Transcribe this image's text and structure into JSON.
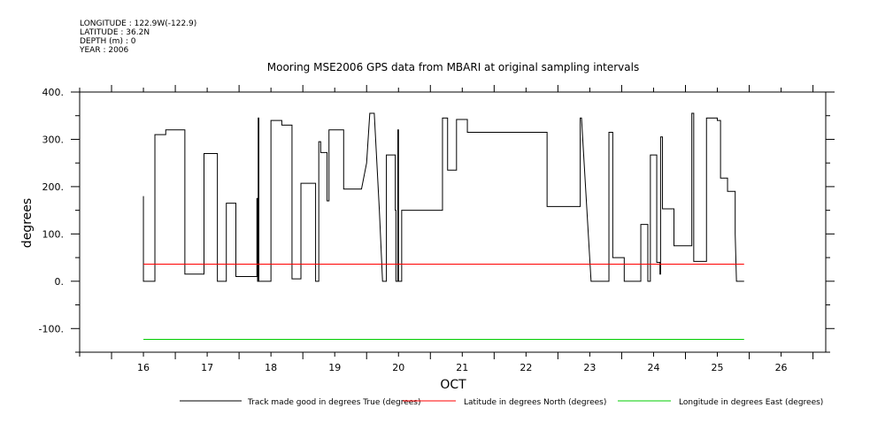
{
  "header": {
    "longitude": "LONGITUDE : 122.9W(-122.9)",
    "latitude": "LATITUDE : 36.2N",
    "depth": "DEPTH (m) : 0",
    "year": "YEAR : 2006"
  },
  "chart_data": {
    "type": "line",
    "title": "Mooring MSE2006 GPS data from MBARI at original sampling intervals",
    "xlabel": "OCT",
    "ylabel": "degrees",
    "xlim": [
      15.5,
      27.2
    ],
    "ylim": [
      -150,
      400
    ],
    "x_ticks": [
      16,
      17,
      18,
      19,
      20,
      21,
      22,
      23,
      24,
      25,
      26
    ],
    "x_tick_labels": [
      "16",
      "17",
      "18",
      "19",
      "20",
      "21",
      "22",
      "23",
      "24",
      "25",
      "26"
    ],
    "y_ticks": [
      -100,
      0,
      100,
      200,
      300,
      400
    ],
    "y_tick_labels": [
      "-100.",
      "0.",
      "100.",
      "200.",
      "300.",
      "400."
    ],
    "grid": false,
    "legend_position": "bottom",
    "series": [
      {
        "name": "Track made good in degrees True (degrees)",
        "color": "#000000",
        "points": [
          [
            16.5,
            180
          ],
          [
            16.5,
            0
          ],
          [
            16.68,
            0
          ],
          [
            16.68,
            310
          ],
          [
            16.85,
            310
          ],
          [
            16.85,
            320
          ],
          [
            17.15,
            320
          ],
          [
            17.15,
            15
          ],
          [
            17.45,
            15
          ],
          [
            17.45,
            270
          ],
          [
            17.66,
            270
          ],
          [
            17.66,
            0
          ],
          [
            17.8,
            0
          ],
          [
            17.8,
            165
          ],
          [
            17.95,
            165
          ],
          [
            17.95,
            10
          ],
          [
            18.28,
            10
          ],
          [
            18.28,
            175
          ],
          [
            18.29,
            175
          ],
          [
            18.29,
            0
          ],
          [
            18.3,
            0
          ],
          [
            18.3,
            345
          ],
          [
            18.31,
            345
          ],
          [
            18.31,
            0
          ],
          [
            18.5,
            0
          ],
          [
            18.5,
            340
          ],
          [
            18.67,
            340
          ],
          [
            18.67,
            330
          ],
          [
            18.83,
            330
          ],
          [
            18.83,
            5
          ],
          [
            18.97,
            5
          ],
          [
            18.97,
            207
          ],
          [
            19.2,
            207
          ],
          [
            19.2,
            0
          ],
          [
            19.25,
            0
          ],
          [
            19.25,
            295
          ],
          [
            19.28,
            295
          ],
          [
            19.28,
            272
          ],
          [
            19.38,
            272
          ],
          [
            19.38,
            170
          ],
          [
            19.41,
            170
          ],
          [
            19.41,
            320
          ],
          [
            19.64,
            320
          ],
          [
            19.64,
            195
          ],
          [
            19.92,
            195
          ],
          [
            20.0,
            250
          ],
          [
            20.05,
            355
          ],
          [
            20.12,
            355
          ],
          [
            20.2,
            150
          ],
          [
            20.25,
            0
          ],
          [
            20.31,
            0
          ],
          [
            20.31,
            267
          ],
          [
            20.45,
            267
          ],
          [
            20.45,
            150
          ],
          [
            20.46,
            150
          ],
          [
            20.46,
            0
          ],
          [
            20.49,
            0
          ],
          [
            20.49,
            320
          ],
          [
            20.5,
            320
          ],
          [
            20.5,
            0
          ],
          [
            20.55,
            0
          ],
          [
            20.55,
            150
          ],
          [
            21.19,
            150
          ],
          [
            21.19,
            345
          ],
          [
            21.27,
            345
          ],
          [
            21.27,
            235
          ],
          [
            21.41,
            235
          ],
          [
            21.41,
            342
          ],
          [
            21.58,
            342
          ],
          [
            21.58,
            315
          ],
          [
            22.83,
            315
          ],
          [
            22.83,
            158
          ],
          [
            23.35,
            158
          ],
          [
            23.35,
            345
          ],
          [
            23.37,
            345
          ],
          [
            23.52,
            0
          ],
          [
            23.8,
            0
          ],
          [
            23.8,
            315
          ],
          [
            23.86,
            315
          ],
          [
            23.86,
            50
          ],
          [
            24.04,
            50
          ],
          [
            24.04,
            0
          ],
          [
            24.3,
            0
          ],
          [
            24.3,
            120
          ],
          [
            24.41,
            120
          ],
          [
            24.41,
            0
          ],
          [
            24.45,
            0
          ],
          [
            24.45,
            267
          ],
          [
            24.55,
            267
          ],
          [
            24.55,
            40
          ],
          [
            24.6,
            40
          ],
          [
            24.6,
            15
          ],
          [
            24.61,
            15
          ],
          [
            24.61,
            305
          ],
          [
            24.64,
            305
          ],
          [
            24.64,
            153
          ],
          [
            24.82,
            153
          ],
          [
            24.82,
            75
          ],
          [
            25.1,
            75
          ],
          [
            25.1,
            355
          ],
          [
            25.13,
            355
          ],
          [
            25.13,
            42
          ],
          [
            25.33,
            42
          ],
          [
            25.33,
            345
          ],
          [
            25.5,
            345
          ],
          [
            25.5,
            340
          ],
          [
            25.55,
            340
          ],
          [
            25.55,
            218
          ],
          [
            25.66,
            218
          ],
          [
            25.66,
            190
          ],
          [
            25.78,
            190
          ],
          [
            25.78,
            100
          ],
          [
            25.8,
            0
          ],
          [
            25.92,
            0
          ]
        ]
      },
      {
        "name": "Latitude in degrees North (degrees)",
        "color": "#ff0000",
        "points": [
          [
            16.5,
            36.2
          ],
          [
            25.92,
            36.2
          ]
        ]
      },
      {
        "name": "Longitude in degrees East (degrees)",
        "color": "#00cc00",
        "points": [
          [
            16.5,
            -122.9
          ],
          [
            25.92,
            -122.9
          ]
        ]
      }
    ]
  }
}
